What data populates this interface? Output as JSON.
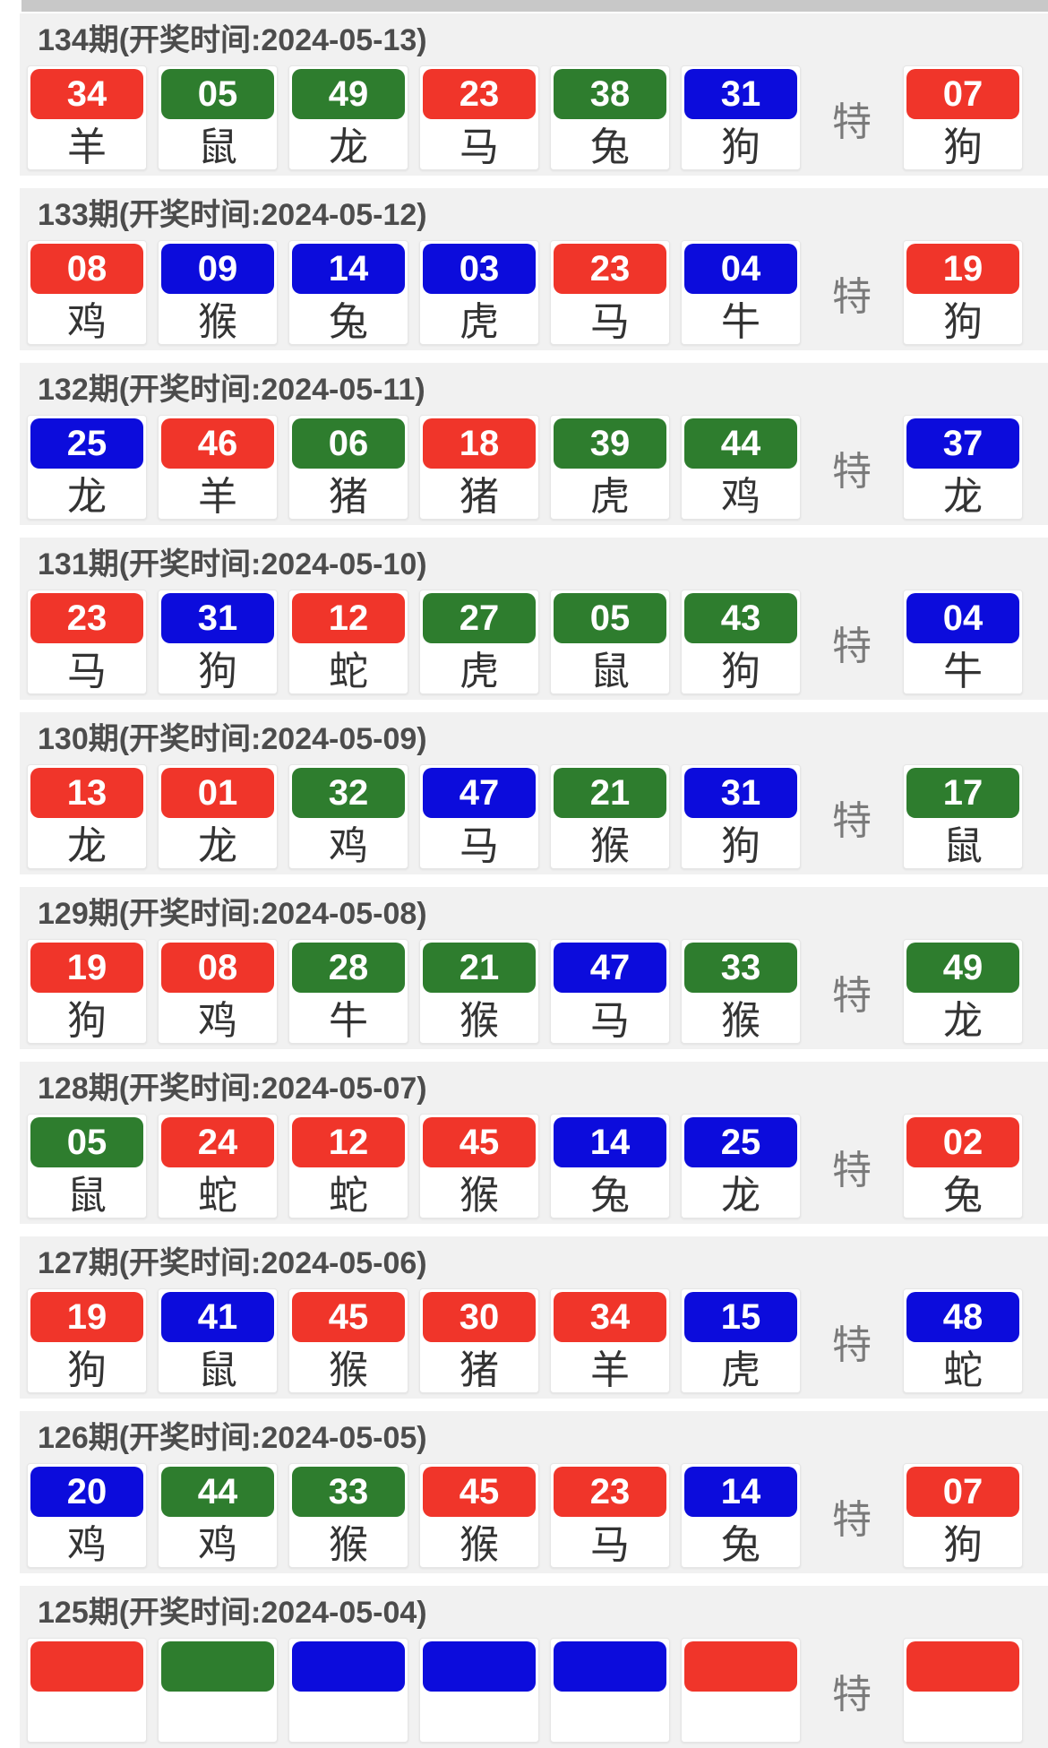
{
  "special_label": "特",
  "colors": {
    "red": "#f0352a",
    "green": "#2e7d2e",
    "blue": "#0c0cdc"
  },
  "rows": [
    {
      "header": "134期(开奖时间:2024-05-13)",
      "balls": [
        {
          "num": "34",
          "color": "red",
          "zodiac": "羊"
        },
        {
          "num": "05",
          "color": "green",
          "zodiac": "鼠"
        },
        {
          "num": "49",
          "color": "green",
          "zodiac": "龙"
        },
        {
          "num": "23",
          "color": "red",
          "zodiac": "马"
        },
        {
          "num": "38",
          "color": "green",
          "zodiac": "兔"
        },
        {
          "num": "31",
          "color": "blue",
          "zodiac": "狗"
        }
      ],
      "special": {
        "num": "07",
        "color": "red",
        "zodiac": "狗"
      }
    },
    {
      "header": "133期(开奖时间:2024-05-12)",
      "balls": [
        {
          "num": "08",
          "color": "red",
          "zodiac": "鸡"
        },
        {
          "num": "09",
          "color": "blue",
          "zodiac": "猴"
        },
        {
          "num": "14",
          "color": "blue",
          "zodiac": "兔"
        },
        {
          "num": "03",
          "color": "blue",
          "zodiac": "虎"
        },
        {
          "num": "23",
          "color": "red",
          "zodiac": "马"
        },
        {
          "num": "04",
          "color": "blue",
          "zodiac": "牛"
        }
      ],
      "special": {
        "num": "19",
        "color": "red",
        "zodiac": "狗"
      }
    },
    {
      "header": "132期(开奖时间:2024-05-11)",
      "balls": [
        {
          "num": "25",
          "color": "blue",
          "zodiac": "龙"
        },
        {
          "num": "46",
          "color": "red",
          "zodiac": "羊"
        },
        {
          "num": "06",
          "color": "green",
          "zodiac": "猪"
        },
        {
          "num": "18",
          "color": "red",
          "zodiac": "猪"
        },
        {
          "num": "39",
          "color": "green",
          "zodiac": "虎"
        },
        {
          "num": "44",
          "color": "green",
          "zodiac": "鸡"
        }
      ],
      "special": {
        "num": "37",
        "color": "blue",
        "zodiac": "龙"
      }
    },
    {
      "header": "131期(开奖时间:2024-05-10)",
      "balls": [
        {
          "num": "23",
          "color": "red",
          "zodiac": "马"
        },
        {
          "num": "31",
          "color": "blue",
          "zodiac": "狗"
        },
        {
          "num": "12",
          "color": "red",
          "zodiac": "蛇"
        },
        {
          "num": "27",
          "color": "green",
          "zodiac": "虎"
        },
        {
          "num": "05",
          "color": "green",
          "zodiac": "鼠"
        },
        {
          "num": "43",
          "color": "green",
          "zodiac": "狗"
        }
      ],
      "special": {
        "num": "04",
        "color": "blue",
        "zodiac": "牛"
      }
    },
    {
      "header": "130期(开奖时间:2024-05-09)",
      "balls": [
        {
          "num": "13",
          "color": "red",
          "zodiac": "龙"
        },
        {
          "num": "01",
          "color": "red",
          "zodiac": "龙"
        },
        {
          "num": "32",
          "color": "green",
          "zodiac": "鸡"
        },
        {
          "num": "47",
          "color": "blue",
          "zodiac": "马"
        },
        {
          "num": "21",
          "color": "green",
          "zodiac": "猴"
        },
        {
          "num": "31",
          "color": "blue",
          "zodiac": "狗"
        }
      ],
      "special": {
        "num": "17",
        "color": "green",
        "zodiac": "鼠"
      }
    },
    {
      "header": "129期(开奖时间:2024-05-08)",
      "balls": [
        {
          "num": "19",
          "color": "red",
          "zodiac": "狗"
        },
        {
          "num": "08",
          "color": "red",
          "zodiac": "鸡"
        },
        {
          "num": "28",
          "color": "green",
          "zodiac": "牛"
        },
        {
          "num": "21",
          "color": "green",
          "zodiac": "猴"
        },
        {
          "num": "47",
          "color": "blue",
          "zodiac": "马"
        },
        {
          "num": "33",
          "color": "green",
          "zodiac": "猴"
        }
      ],
      "special": {
        "num": "49",
        "color": "green",
        "zodiac": "龙"
      }
    },
    {
      "header": "128期(开奖时间:2024-05-07)",
      "balls": [
        {
          "num": "05",
          "color": "green",
          "zodiac": "鼠"
        },
        {
          "num": "24",
          "color": "red",
          "zodiac": "蛇"
        },
        {
          "num": "12",
          "color": "red",
          "zodiac": "蛇"
        },
        {
          "num": "45",
          "color": "red",
          "zodiac": "猴"
        },
        {
          "num": "14",
          "color": "blue",
          "zodiac": "兔"
        },
        {
          "num": "25",
          "color": "blue",
          "zodiac": "龙"
        }
      ],
      "special": {
        "num": "02",
        "color": "red",
        "zodiac": "兔"
      }
    },
    {
      "header": "127期(开奖时间:2024-05-06)",
      "balls": [
        {
          "num": "19",
          "color": "red",
          "zodiac": "狗"
        },
        {
          "num": "41",
          "color": "blue",
          "zodiac": "鼠"
        },
        {
          "num": "45",
          "color": "red",
          "zodiac": "猴"
        },
        {
          "num": "30",
          "color": "red",
          "zodiac": "猪"
        },
        {
          "num": "34",
          "color": "red",
          "zodiac": "羊"
        },
        {
          "num": "15",
          "color": "blue",
          "zodiac": "虎"
        }
      ],
      "special": {
        "num": "48",
        "color": "blue",
        "zodiac": "蛇"
      }
    },
    {
      "header": "126期(开奖时间:2024-05-05)",
      "balls": [
        {
          "num": "20",
          "color": "blue",
          "zodiac": "鸡"
        },
        {
          "num": "44",
          "color": "green",
          "zodiac": "鸡"
        },
        {
          "num": "33",
          "color": "green",
          "zodiac": "猴"
        },
        {
          "num": "45",
          "color": "red",
          "zodiac": "猴"
        },
        {
          "num": "23",
          "color": "red",
          "zodiac": "马"
        },
        {
          "num": "14",
          "color": "blue",
          "zodiac": "兔"
        }
      ],
      "special": {
        "num": "07",
        "color": "red",
        "zodiac": "狗"
      }
    },
    {
      "header": "125期(开奖时间:2024-05-04)",
      "balls": [
        {
          "num": "",
          "color": "red",
          "zodiac": ""
        },
        {
          "num": "",
          "color": "green",
          "zodiac": ""
        },
        {
          "num": "",
          "color": "blue",
          "zodiac": ""
        },
        {
          "num": "",
          "color": "blue",
          "zodiac": ""
        },
        {
          "num": "",
          "color": "blue",
          "zodiac": ""
        },
        {
          "num": "",
          "color": "red",
          "zodiac": ""
        }
      ],
      "special": {
        "num": "",
        "color": "red",
        "zodiac": ""
      }
    }
  ]
}
